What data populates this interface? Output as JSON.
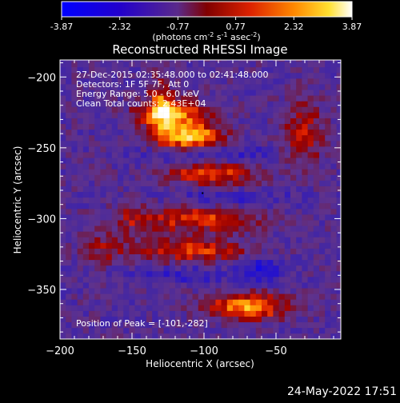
{
  "colorbar": {
    "tick_labels": [
      "-3.87",
      "-2.32",
      "-0.77",
      "0.77",
      "2.32",
      "3.87"
    ],
    "min": -3.87,
    "max": 3.87
  },
  "chart_data": {
    "type": "heatmap",
    "title": "Reconstructed RHESSI Image",
    "colorbar_units_prefix": "(photons cm",
    "colorbar_units_e1": "-2",
    "colorbar_units_mid1": " s",
    "colorbar_units_e2": "-1",
    "colorbar_units_mid2": " asec",
    "colorbar_units_e3": "-2",
    "colorbar_units_suffix": ")",
    "xlabel": "Heliocentric X (arcsec)",
    "ylabel": "Heliocentric Y (arcsec)",
    "xlim": [
      -200,
      -5
    ],
    "ylim": [
      -385,
      -188
    ],
    "x_ticks": [
      -200,
      -150,
      -100,
      -50
    ],
    "x_tick_labels": [
      "−200",
      "−150",
      "−100",
      "−50"
    ],
    "y_ticks": [
      -200,
      -250,
      -300,
      -350
    ],
    "y_tick_labels": [
      "−200",
      "−250",
      "−300",
      "−350"
    ],
    "peak": [
      -101,
      -282
    ],
    "colormap": [
      "#0000ff",
      "#0000ff",
      "#2a00a8",
      "#4b0082",
      "#6a2f8a",
      "#800000",
      "#cc0000",
      "#ff6a00",
      "#ffd700",
      "#ffffff"
    ],
    "annotations": {
      "time_range": "27-Dec-2015 02:35:48.000 to 02:41:48.000",
      "detectors": "Detectors: 1F 5F 7F, Att 0",
      "energy": "Energy Range: 5.0 - 6.0 keV",
      "method": "Clean     Total counts: 2.43E+04",
      "peak_label": "Position of Peak = [-101,-282]"
    }
  },
  "footer": {
    "timestamp": "24-May-2022 17:51"
  }
}
